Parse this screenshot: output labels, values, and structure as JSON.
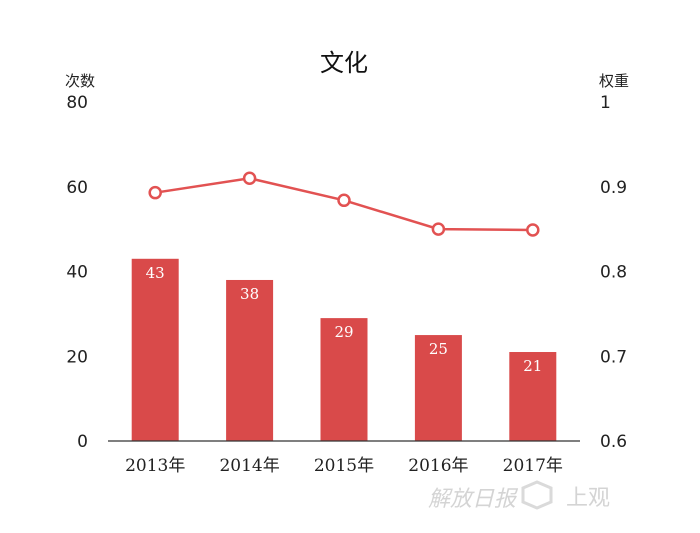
{
  "chart_data": {
    "type": "bar",
    "title": "文化",
    "categories": [
      "2013年",
      "2014年",
      "2015年",
      "2016年",
      "2017年"
    ],
    "series": [
      {
        "name": "次数",
        "type": "bar",
        "axis": "left",
        "values": [
          43,
          38,
          29,
          25,
          21
        ]
      },
      {
        "name": "权重",
        "type": "line",
        "axis": "right",
        "values": [
          0.893,
          0.91,
          0.884,
          0.85,
          0.849
        ]
      }
    ],
    "y_left": {
      "label": "次数",
      "range": [
        0,
        80
      ],
      "ticks": [
        0,
        20,
        40,
        60,
        80
      ]
    },
    "y_right": {
      "label": "权重",
      "range": [
        0.6,
        1
      ],
      "ticks": [
        "0.6",
        "0.7",
        "0.8",
        "0.9",
        "1"
      ]
    },
    "grid": false,
    "bar_labels": true,
    "colors": {
      "bar": "#d94a4a",
      "line": "#e25252",
      "marker_fill": "#ffffff"
    }
  },
  "watermark": {
    "left": "解放日报",
    "right": "上观"
  }
}
